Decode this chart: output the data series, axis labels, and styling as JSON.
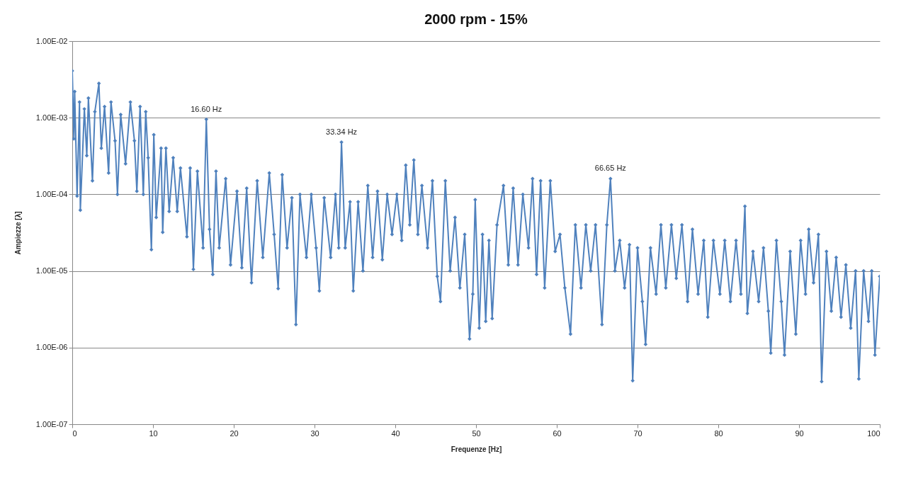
{
  "chart_data": {
    "type": "line",
    "title": "2000 rpm - 15%",
    "xlabel": "Frequenze [Hz]",
    "ylabel": "Ampiezze [λ]",
    "log": true,
    "grid": "y",
    "legend": false,
    "marker": "diamond",
    "line_style": "solid",
    "xlim": [
      0,
      100
    ],
    "xticks": [
      0,
      10,
      20,
      30,
      40,
      50,
      60,
      70,
      80,
      90,
      100
    ],
    "ylim": [
      1e-07,
      0.01
    ],
    "yticks": [
      {
        "value": 1e-07,
        "label": "1.00E-07"
      },
      {
        "value": 1e-06,
        "label": "1.00E-06"
      },
      {
        "value": 1e-05,
        "label": "1.00E-05"
      },
      {
        "value": 0.0001,
        "label": "1.00E-04"
      },
      {
        "value": 0.001,
        "label": "1.00E-03"
      },
      {
        "value": 0.01,
        "label": "1.00E-02"
      }
    ],
    "annotations": [
      {
        "text": "16.60 Hz",
        "x": 16.6,
        "y": 0.00095
      },
      {
        "text": "33.34 Hz",
        "x": 33.34,
        "y": 0.00048
      },
      {
        "text": "66.65 Hz",
        "x": 66.65,
        "y": 0.00016
      }
    ],
    "series": [
      {
        "color": "#4f81bd",
        "x": [
          0,
          0.2,
          0.3,
          0.6,
          0.9,
          1.0,
          1.5,
          1.8,
          2.0,
          2.5,
          2.8,
          3.3,
          3.6,
          4.0,
          4.5,
          4.8,
          5.3,
          5.6,
          6.0,
          6.6,
          7.2,
          7.7,
          8.0,
          8.4,
          8.8,
          9.1,
          9.4,
          9.8,
          10.1,
          10.4,
          11.0,
          11.2,
          11.6,
          12.0,
          12.5,
          13.0,
          13.4,
          14.2,
          14.6,
          15.0,
          15.5,
          16.2,
          16.6,
          17.0,
          17.4,
          17.8,
          18.2,
          19.0,
          19.6,
          20.4,
          21.0,
          21.6,
          22.2,
          22.9,
          23.6,
          24.4,
          25.0,
          25.5,
          26.0,
          26.6,
          27.2,
          27.7,
          28.2,
          29.0,
          29.6,
          30.2,
          30.6,
          31.2,
          32.0,
          32.6,
          33.0,
          33.34,
          33.8,
          34.4,
          34.8,
          35.4,
          36.0,
          36.6,
          37.2,
          37.8,
          38.4,
          39.0,
          39.6,
          40.2,
          40.8,
          41.3,
          41.8,
          42.3,
          42.8,
          43.3,
          44.0,
          44.6,
          45.2,
          45.6,
          46.2,
          46.8,
          47.4,
          48.0,
          48.6,
          49.2,
          49.6,
          49.9,
          50.4,
          50.8,
          51.2,
          51.6,
          52.0,
          52.6,
          53.4,
          54.0,
          54.6,
          55.2,
          55.8,
          56.5,
          57.0,
          57.5,
          58.0,
          58.5,
          59.2,
          59.8,
          60.4,
          61.0,
          61.7,
          62.3,
          63.0,
          63.6,
          64.2,
          64.8,
          65.6,
          66.2,
          66.65,
          67.2,
          67.8,
          68.4,
          69.0,
          69.4,
          70.0,
          70.6,
          71.0,
          71.6,
          72.3,
          72.9,
          73.5,
          74.2,
          74.8,
          75.5,
          76.2,
          76.8,
          77.5,
          78.2,
          78.7,
          79.4,
          80.2,
          80.8,
          81.5,
          82.2,
          82.8,
          83.3,
          83.6,
          84.3,
          85.0,
          85.6,
          86.2,
          86.5,
          87.2,
          87.8,
          88.2,
          88.9,
          89.6,
          90.2,
          90.8,
          91.2,
          91.8,
          92.4,
          92.8,
          93.4,
          94.0,
          94.6,
          95.2,
          95.8,
          96.4,
          97.0,
          97.4,
          98.0,
          98.6,
          99.0,
          99.4,
          100
        ],
        "values": [
          0.0041,
          0.00053,
          0.0022,
          9.5e-05,
          0.0016,
          6.2e-05,
          0.0013,
          0.00032,
          0.0018,
          0.00015,
          0.0012,
          0.0028,
          0.0004,
          0.0014,
          0.00019,
          0.0016,
          0.0005,
          0.0001,
          0.0011,
          0.00025,
          0.0016,
          0.0005,
          0.00011,
          0.0014,
          0.0001,
          0.0012,
          0.0003,
          1.9e-05,
          0.0006,
          5e-05,
          0.0004,
          3.2e-05,
          0.0004,
          6e-05,
          0.0003,
          6e-05,
          0.00022,
          2.8e-05,
          0.00022,
          1.05e-05,
          0.0002,
          2e-05,
          0.00095,
          3.5e-05,
          9e-06,
          0.0002,
          2e-05,
          0.00016,
          1.2e-05,
          0.00011,
          1.1e-05,
          0.00012,
          7e-06,
          0.00015,
          1.5e-05,
          0.00019,
          3e-05,
          5.9e-06,
          0.00018,
          2e-05,
          9e-05,
          2e-06,
          0.0001,
          1.5e-05,
          0.0001,
          2e-05,
          5.5e-06,
          9e-05,
          1.5e-05,
          0.0001,
          2e-05,
          0.00048,
          2e-05,
          8e-05,
          5.5e-06,
          8e-05,
          1e-05,
          0.00013,
          1.5e-05,
          0.00011,
          1.4e-05,
          0.0001,
          3e-05,
          0.0001,
          2.5e-05,
          0.00024,
          4e-05,
          0.00028,
          3e-05,
          0.00013,
          2e-05,
          0.00015,
          8.5e-06,
          4e-06,
          0.00015,
          1e-05,
          5e-05,
          6e-06,
          3e-05,
          1.3e-06,
          5e-06,
          8.5e-05,
          1.8e-06,
          3e-05,
          2.2e-06,
          2.5e-05,
          2.4e-06,
          4e-05,
          0.00013,
          1.2e-05,
          0.00012,
          1.2e-05,
          0.0001,
          2e-05,
          0.00016,
          9e-06,
          0.00015,
          6e-06,
          0.00015,
          1.8e-05,
          3e-05,
          6e-06,
          1.5e-06,
          4e-05,
          6e-06,
          4e-05,
          1e-05,
          4e-05,
          2e-06,
          4e-05,
          0.00016,
          1e-05,
          2.5e-05,
          6e-06,
          2.2e-05,
          3.7e-07,
          2e-05,
          4e-06,
          1.1e-06,
          2e-05,
          5e-06,
          4e-05,
          6e-06,
          4e-05,
          8e-06,
          4e-05,
          4e-06,
          3.5e-05,
          5e-06,
          2.5e-05,
          2.5e-06,
          2.5e-05,
          5e-06,
          2.5e-05,
          4e-06,
          2.5e-05,
          5e-06,
          7e-05,
          2.8e-06,
          1.8e-05,
          4e-06,
          2e-05,
          3e-06,
          8.5e-07,
          2.5e-05,
          4e-06,
          8e-07,
          1.8e-05,
          1.5e-06,
          2.5e-05,
          5e-06,
          3.5e-05,
          7e-06,
          3e-05,
          3.6e-07,
          1.8e-05,
          3e-06,
          1.5e-05,
          2.5e-06,
          1.2e-05,
          1.8e-06,
          1e-05,
          3.9e-07,
          1e-05,
          2.2e-06,
          1e-05,
          8e-07,
          8.5e-06
        ]
      }
    ]
  }
}
